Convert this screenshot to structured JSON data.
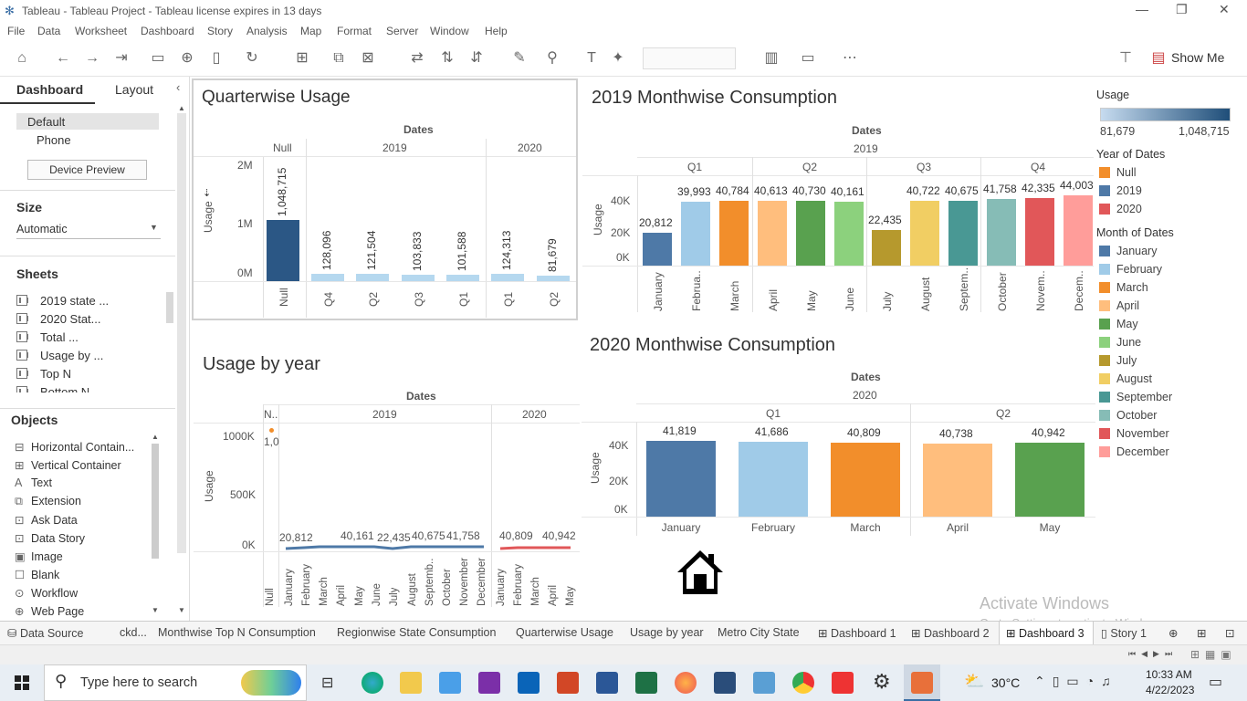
{
  "window": {
    "title": "Tableau - Tableau Project - Tableau license expires in 13 days",
    "minimize": "—",
    "restore": "❐",
    "close": "✕"
  },
  "menu": [
    "File",
    "Data",
    "Worksheet",
    "Dashboard",
    "Story",
    "Analysis",
    "Map",
    "Format",
    "Server",
    "Window",
    "Help"
  ],
  "toolbar": {
    "show_me": "Show Me"
  },
  "left": {
    "tab_dashboard": "Dashboard",
    "tab_layout": "Layout",
    "devices": [
      "Default",
      "Phone"
    ],
    "device_preview": "Device Preview",
    "size_title": "Size",
    "size_value": "Automatic",
    "sheets_title": "Sheets",
    "sheets": [
      "2019 state ...",
      "2020 Stat...",
      "Total ...",
      "Usage by ...",
      "Top N",
      "Bottom N"
    ],
    "objects_title": "Objects",
    "objects": [
      {
        "icon": "⊟",
        "label": "Horizontal Contain..."
      },
      {
        "icon": "⊞",
        "label": "Vertical Container"
      },
      {
        "icon": "A",
        "label": "Text"
      },
      {
        "icon": "⧉",
        "label": "Extension"
      },
      {
        "icon": "⊡",
        "label": "Ask Data"
      },
      {
        "icon": "⊡",
        "label": "Data Story"
      },
      {
        "icon": "▣",
        "label": "Image"
      },
      {
        "icon": "☐",
        "label": "Blank"
      },
      {
        "icon": "⊙",
        "label": "Workflow"
      },
      {
        "icon": "⊕",
        "label": "Web Page"
      }
    ]
  },
  "q_chart": {
    "title": "Quarterwise Usage",
    "header": "Dates",
    "groups": [
      "Null",
      "2019",
      "2020"
    ],
    "ylabel": "Usage",
    "yticks": [
      "2M",
      "1M",
      "0M"
    ],
    "bars": [
      {
        "label": "Null",
        "value": "1,048,715"
      },
      {
        "label": "Q4",
        "value": "128,096"
      },
      {
        "label": "Q2",
        "value": "121,504"
      },
      {
        "label": "Q3",
        "value": "103,833"
      },
      {
        "label": "Q1",
        "value": "101,588"
      },
      {
        "label": "Q1",
        "value": "124,313"
      },
      {
        "label": "Q2",
        "value": "81,679"
      }
    ]
  },
  "m2019": {
    "title": "2019 Monthwise Consumption",
    "header": "Dates",
    "year": "2019",
    "quarters": [
      "Q1",
      "Q2",
      "Q3",
      "Q4"
    ],
    "ylabel": "Usage",
    "yticks": [
      "40K",
      "20K",
      "0K"
    ],
    "bars": [
      {
        "label": "January",
        "value": "20,812"
      },
      {
        "label": "Februa..",
        "value": "39,993"
      },
      {
        "label": "March",
        "value": "40,784"
      },
      {
        "label": "April",
        "value": "40,613"
      },
      {
        "label": "May",
        "value": "40,730"
      },
      {
        "label": "June",
        "value": "40,161"
      },
      {
        "label": "July",
        "value": "22,435"
      },
      {
        "label": "August",
        "value": "40,722"
      },
      {
        "label": "Septem..",
        "value": "40,675"
      },
      {
        "label": "October",
        "value": "41,758"
      },
      {
        "label": "Novem..",
        "value": "42,335"
      },
      {
        "label": "Decem..",
        "value": "44,003"
      }
    ]
  },
  "m2020": {
    "title": "2020 Monthwise Consumption",
    "header": "Dates",
    "year": "2020",
    "quarters": [
      "Q1",
      "Q2"
    ],
    "ylabel": "Usage",
    "yticks": [
      "40K",
      "20K",
      "0K"
    ],
    "bars": [
      {
        "label": "January",
        "value": "41,819"
      },
      {
        "label": "February",
        "value": "41,686"
      },
      {
        "label": "March",
        "value": "40,809"
      },
      {
        "label": "April",
        "value": "40,738"
      },
      {
        "label": "May",
        "value": "40,942"
      }
    ]
  },
  "ybyear": {
    "title": "Usage by year",
    "header": "Dates",
    "groups": [
      "N..",
      "2019",
      "2020"
    ],
    "ylabel": "Usage",
    "yticks": [
      "1000K",
      "500K",
      "0K"
    ],
    "null_value": "1,0",
    "labels_2019": [
      "20,812",
      "40,161",
      "22,435",
      "40,675",
      "41,758"
    ],
    "labels_2020": [
      "40,809",
      "40,942"
    ],
    "months_null": [
      "Null"
    ],
    "months_2019": [
      "January",
      "February",
      "March",
      "April",
      "May",
      "June",
      "July",
      "August",
      "Septemb..",
      "October",
      "November",
      "December"
    ],
    "months_2020": [
      "January",
      "February",
      "March",
      "April",
      "May"
    ]
  },
  "legend": {
    "usage_title": "Usage",
    "usage_min": "81,679",
    "usage_max": "1,048,715",
    "year_title": "Year of Dates",
    "years": [
      {
        "label": "Null",
        "color": "#f28e2b"
      },
      {
        "label": "2019",
        "color": "#4e79a7"
      },
      {
        "label": "2020",
        "color": "#e15759"
      }
    ],
    "month_title": "Month of Dates",
    "months": [
      {
        "label": "January",
        "color": "#4e79a7"
      },
      {
        "label": "February",
        "color": "#a0cbe8"
      },
      {
        "label": "March",
        "color": "#f28e2b"
      },
      {
        "label": "April",
        "color": "#ffbe7d"
      },
      {
        "label": "May",
        "color": "#59a14f"
      },
      {
        "label": "June",
        "color": "#8cd17d"
      },
      {
        "label": "July",
        "color": "#b6992d"
      },
      {
        "label": "August",
        "color": "#f1ce63"
      },
      {
        "label": "September",
        "color": "#499894"
      },
      {
        "label": "October",
        "color": "#86bcb6"
      },
      {
        "label": "November",
        "color": "#e15759"
      },
      {
        "label": "December",
        "color": "#ff9d9a"
      }
    ]
  },
  "watermark": {
    "line1": "Activate Windows",
    "line2": "Go to Settings to activate Windows."
  },
  "bottom_tabs": [
    "Data Source",
    "ckd...",
    "Monthwise Top N Consumption",
    "Regionwise State Consumption",
    "Quarterwise Usage",
    "Usage by year",
    "Metro City State",
    "Dashboard 1",
    "Dashboard 2",
    "Dashboard 3",
    "Story 1"
  ],
  "taskbar": {
    "search_placeholder": "Type here to search",
    "weather": "30°C",
    "time": "10:33 AM",
    "date": "4/22/2023"
  }
}
